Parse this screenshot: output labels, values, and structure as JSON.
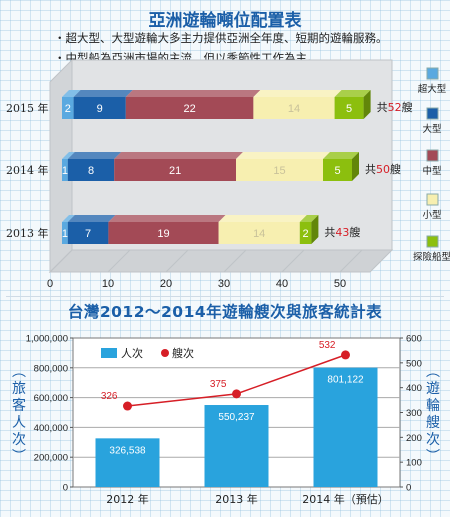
{
  "top": {
    "title": "亞洲遊輪噸位配置表",
    "notes": [
      "・超大型、大型遊輪大多主力提供亞洲全年度、短期的遊輪服務。",
      "・中型船為亞洲市場的主流，但以季節性工作為主。"
    ]
  },
  "bottom": {
    "title": "台灣2012～2014年遊輪艘次與旅客統計表"
  },
  "chart_data": [
    {
      "type": "bar",
      "orientation": "horizontal",
      "stacked": true,
      "categories": [
        "2015 年",
        "2014 年",
        "2013 年"
      ],
      "series": [
        {
          "name": "超大型",
          "color": "#5aa9e0",
          "values": [
            2,
            1,
            1
          ]
        },
        {
          "name": "大型",
          "color": "#1b5fa8",
          "values": [
            9,
            8,
            7
          ]
        },
        {
          "name": "中型",
          "color": "#a34a56",
          "values": [
            22,
            21,
            19
          ]
        },
        {
          "name": "小型",
          "color": "#f7efb0",
          "values": [
            14,
            15,
            14
          ]
        },
        {
          "name": "探險船型",
          "color": "#8cbf0e",
          "values": [
            5,
            5,
            2
          ]
        }
      ],
      "totals": [
        {
          "prefix": "共",
          "value": "52",
          "suffix": "艘"
        },
        {
          "prefix": "共",
          "value": "50",
          "suffix": "艘"
        },
        {
          "prefix": "共",
          "value": "43",
          "suffix": "艘"
        }
      ],
      "xticks": [
        "0",
        "10",
        "20",
        "30",
        "40",
        "50"
      ],
      "xlim": [
        0,
        50
      ]
    },
    {
      "type": "bar+line",
      "categories": [
        "2012 年",
        "2013 年",
        "2014 年（預估）"
      ],
      "bar_series": {
        "name": "人次",
        "color": "#29a3dd",
        "values": [
          326538,
          550237,
          801122
        ],
        "labels": [
          "326,538",
          "550,237",
          "801,122"
        ]
      },
      "line_series": {
        "name": "艘次",
        "color": "#d61e26",
        "values": [
          326,
          375,
          532
        ],
        "labels": [
          "326",
          "375",
          "532"
        ]
      },
      "ylabel_left": "旅客人次",
      "ylabel_right": "遊輪艘次",
      "ylim_left": [
        0,
        1000000
      ],
      "ylim_right": [
        0,
        600
      ],
      "yticks_left": [
        "0",
        "200,000",
        "400,000",
        "600,000",
        "800,000",
        "1,000,000"
      ],
      "yticks_right": [
        "0",
        "100",
        "200",
        "300",
        "400",
        "500",
        "600"
      ],
      "legend_position": "top-left"
    }
  ]
}
